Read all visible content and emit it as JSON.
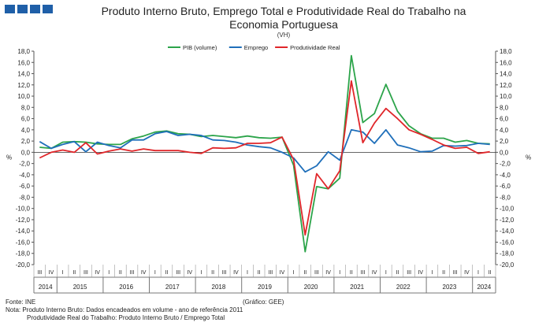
{
  "header": {
    "title_line1": "Produto Interno Bruto, Emprego Total e Produtividade Real do Trabalho na",
    "title_line2": "Economia Portuguesa",
    "unit": "(VH)"
  },
  "footer": {
    "source": "Fonte: INE",
    "credit": "(Gráfico: GEE)",
    "note1": "Nota: Produto Interno Bruto: Dados encadeados em volume - ano de referência 2011",
    "note2": "Produtividade Real do Trabalho: Produto Interno Bruto / Emprego Total"
  },
  "chart_data": {
    "type": "line",
    "title": "Produto Interno Bruto, Emprego Total e Produtividade Real do Trabalho na Economia Portuguesa",
    "ylabel_left": "%",
    "ylabel_right": "%",
    "ylim": [
      -20,
      18
    ],
    "yticks": [
      "18,0",
      "16,0",
      "14,0",
      "12,0",
      "10,0",
      "8,0",
      "6,0",
      "4,0",
      "2,0",
      "0,0",
      "-2,0",
      "-4,0",
      "-6,0",
      "-8,0",
      "-10,0",
      "-12,0",
      "-14,0",
      "-16,0",
      "-18,0",
      "-20,0"
    ],
    "legend_position": "top",
    "grid": false,
    "quarters": [
      "III",
      "IV",
      "I",
      "II",
      "III",
      "IV",
      "I",
      "II",
      "III",
      "IV",
      "I",
      "II",
      "III",
      "IV",
      "I",
      "II",
      "III",
      "IV",
      "I",
      "II",
      "III",
      "IV",
      "I",
      "II",
      "III",
      "IV",
      "I",
      "II",
      "III",
      "IV",
      "I",
      "II",
      "III",
      "IV",
      "I",
      "II",
      "III",
      "IV",
      "I",
      "II"
    ],
    "years": [
      {
        "label": "2014",
        "start": 0,
        "count": 2
      },
      {
        "label": "2015",
        "start": 2,
        "count": 4
      },
      {
        "label": "2016",
        "start": 6,
        "count": 4
      },
      {
        "label": "2017",
        "start": 10,
        "count": 4
      },
      {
        "label": "2018",
        "start": 14,
        "count": 4
      },
      {
        "label": "2019",
        "start": 18,
        "count": 4
      },
      {
        "label": "2020",
        "start": 22,
        "count": 4
      },
      {
        "label": "2021",
        "start": 26,
        "count": 4
      },
      {
        "label": "2022",
        "start": 30,
        "count": 4
      },
      {
        "label": "2023",
        "start": 34,
        "count": 4
      },
      {
        "label": "2024",
        "start": 38,
        "count": 2
      }
    ],
    "series": [
      {
        "name": "PIB (volume)",
        "color": "#2ca44a",
        "values": [
          0.9,
          0.7,
          1.8,
          1.9,
          1.8,
          1.5,
          1.4,
          1.4,
          2.4,
          2.9,
          3.6,
          3.8,
          3.3,
          3.2,
          2.8,
          3.0,
          2.8,
          2.6,
          2.9,
          2.6,
          2.5,
          2.7,
          -2.3,
          -17.7,
          -6.1,
          -6.5,
          -4.6,
          17.2,
          5.3,
          6.9,
          12.1,
          7.3,
          4.7,
          3.3,
          2.5,
          2.5,
          1.8,
          2.1,
          1.6,
          1.5
        ]
      },
      {
        "name": "Emprego",
        "color": "#1f6fba",
        "values": [
          1.9,
          0.7,
          1.4,
          1.9,
          0.1,
          1.8,
          1.2,
          0.8,
          2.2,
          2.2,
          3.3,
          3.7,
          3.0,
          3.2,
          3.0,
          2.2,
          2.1,
          1.8,
          1.3,
          1.0,
          0.8,
          0.0,
          -1.0,
          -3.5,
          -2.4,
          0.1,
          -1.4,
          4.0,
          3.6,
          1.6,
          4.0,
          1.3,
          0.8,
          0.1,
          0.2,
          1.2,
          1.1,
          1.2,
          1.6,
          1.4
        ]
      },
      {
        "name": "Produtividade Real",
        "color": "#e0262a",
        "values": [
          -1.0,
          0.0,
          0.4,
          0.0,
          1.7,
          -0.3,
          0.2,
          0.6,
          0.2,
          0.6,
          0.3,
          0.3,
          0.3,
          0.0,
          -0.2,
          0.8,
          0.7,
          0.8,
          1.6,
          1.6,
          1.7,
          2.7,
          -1.3,
          -14.7,
          -3.8,
          -6.5,
          -3.3,
          12.7,
          1.7,
          5.2,
          7.8,
          6.0,
          4.0,
          3.2,
          2.3,
          1.3,
          0.7,
          0.9,
          -0.2,
          0.1
        ]
      }
    ]
  }
}
